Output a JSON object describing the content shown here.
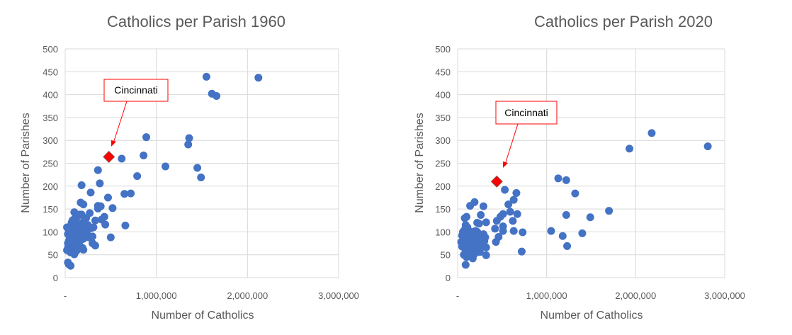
{
  "chart_data": [
    {
      "type": "scatter",
      "title": "Catholics per Parish 1960",
      "xlabel": "Number of Catholics",
      "ylabel": "Number of Parishes",
      "xlim": [
        0,
        3000000
      ],
      "ylim": [
        0,
        500
      ],
      "xticks": [
        0,
        1000000,
        2000000,
        3000000
      ],
      "xtick_labels": [
        "-",
        "1,000,000",
        "2,000,000",
        "3,000,000"
      ],
      "yticks": [
        0,
        50,
        100,
        150,
        200,
        250,
        300,
        350,
        400,
        450,
        500
      ],
      "ytick_labels": [
        "0",
        "50",
        "100",
        "150",
        "200",
        "250",
        "300",
        "350",
        "400",
        "450",
        "500"
      ],
      "grid": true,
      "series_color": "#4472c4",
      "highlight_color": "#ff0000",
      "highlight": {
        "label": "Cincinnati",
        "x": 480000,
        "y": 264
      },
      "points": [
        [
          1550000,
          439
        ],
        [
          2120000,
          437
        ],
        [
          1610000,
          402
        ],
        [
          1660000,
          397
        ],
        [
          890000,
          307
        ],
        [
          1360000,
          305
        ],
        [
          1350000,
          291
        ],
        [
          860000,
          267
        ],
        [
          620000,
          260
        ],
        [
          1100000,
          243
        ],
        [
          1450000,
          240
        ],
        [
          1490000,
          219
        ],
        [
          790000,
          222
        ],
        [
          360000,
          235
        ],
        [
          380000,
          206
        ],
        [
          180000,
          202
        ],
        [
          280000,
          186
        ],
        [
          470000,
          175
        ],
        [
          650000,
          183
        ],
        [
          720000,
          184
        ],
        [
          170000,
          164
        ],
        [
          200000,
          160
        ],
        [
          360000,
          157
        ],
        [
          390000,
          156
        ],
        [
          360000,
          151
        ],
        [
          520000,
          152
        ],
        [
          270000,
          141
        ],
        [
          100000,
          143
        ],
        [
          430000,
          133
        ],
        [
          330000,
          125
        ],
        [
          400000,
          127
        ],
        [
          440000,
          116
        ],
        [
          660000,
          114
        ],
        [
          500000,
          88
        ],
        [
          310000,
          110
        ],
        [
          300000,
          90
        ],
        [
          330000,
          70
        ],
        [
          300000,
          75
        ],
        [
          200000,
          61
        ],
        [
          100000,
          51
        ],
        [
          30000,
          33
        ],
        [
          60000,
          26
        ],
        [
          40000,
          29
        ],
        [
          20000,
          110
        ],
        [
          30000,
          95
        ],
        [
          40000,
          80
        ],
        [
          30000,
          65
        ],
        [
          20000,
          60
        ],
        [
          50000,
          70
        ],
        [
          60000,
          100
        ],
        [
          70000,
          120
        ],
        [
          80000,
          125
        ],
        [
          90000,
          90
        ],
        [
          100000,
          105
        ],
        [
          110000,
          85
        ],
        [
          120000,
          130
        ],
        [
          130000,
          115
        ],
        [
          140000,
          95
        ],
        [
          150000,
          75
        ],
        [
          160000,
          138
        ],
        [
          170000,
          110
        ],
        [
          180000,
          100
        ],
        [
          190000,
          120
        ],
        [
          200000,
          85
        ],
        [
          210000,
          125
        ],
        [
          220000,
          105
        ],
        [
          240000,
          95
        ],
        [
          250000,
          115
        ],
        [
          260000,
          88
        ],
        [
          280000,
          108
        ],
        [
          60000,
          55
        ],
        [
          80000,
          62
        ],
        [
          100000,
          68
        ],
        [
          120000,
          58
        ],
        [
          50000,
          88
        ],
        [
          70000,
          105
        ],
        [
          90000,
          78
        ],
        [
          110000,
          98
        ],
        [
          130000,
          72
        ],
        [
          150000,
          118
        ],
        [
          170000,
          82
        ],
        [
          190000,
          65
        ],
        [
          230000,
          130
        ],
        [
          40000,
          100
        ],
        [
          140000,
          135
        ],
        [
          200000,
          112
        ],
        [
          160000,
          92
        ],
        [
          100000,
          128
        ],
        [
          80000,
          95
        ],
        [
          180000,
          138
        ],
        [
          220000,
          90
        ],
        [
          130000,
          60
        ],
        [
          30000,
          75
        ]
      ]
    },
    {
      "type": "scatter",
      "title": "Catholics per Parish 2020",
      "xlabel": "Number of Catholics",
      "ylabel": "Number of Parishes",
      "xlim": [
        0,
        3000000
      ],
      "ylim": [
        0,
        500
      ],
      "xticks": [
        0,
        1000000,
        2000000,
        3000000
      ],
      "xtick_labels": [
        "-",
        "1,000,000",
        "2,000,000",
        "3,000,000"
      ],
      "yticks": [
        0,
        50,
        100,
        150,
        200,
        250,
        300,
        350,
        400,
        450,
        500
      ],
      "ytick_labels": [
        "0",
        "50",
        "100",
        "150",
        "200",
        "250",
        "300",
        "350",
        "400",
        "450",
        "500"
      ],
      "grid": true,
      "series_color": "#4472c4",
      "highlight_color": "#ff0000",
      "highlight": {
        "label": "Cincinnati",
        "x": 440000,
        "y": 210
      },
      "points": [
        [
          2180000,
          316
        ],
        [
          1930000,
          282
        ],
        [
          2810000,
          287
        ],
        [
          1130000,
          217
        ],
        [
          1220000,
          213
        ],
        [
          1320000,
          184
        ],
        [
          1700000,
          146
        ],
        [
          1490000,
          132
        ],
        [
          1220000,
          137
        ],
        [
          1050000,
          102
        ],
        [
          1180000,
          91
        ],
        [
          1400000,
          97
        ],
        [
          1230000,
          69
        ],
        [
          530000,
          192
        ],
        [
          660000,
          185
        ],
        [
          630000,
          170
        ],
        [
          570000,
          160
        ],
        [
          590000,
          144
        ],
        [
          670000,
          139
        ],
        [
          510000,
          139
        ],
        [
          480000,
          133
        ],
        [
          440000,
          124
        ],
        [
          620000,
          124
        ],
        [
          630000,
          102
        ],
        [
          730000,
          99
        ],
        [
          720000,
          57
        ],
        [
          510000,
          112
        ],
        [
          510000,
          102
        ],
        [
          420000,
          107
        ],
        [
          460000,
          89
        ],
        [
          430000,
          78
        ],
        [
          290000,
          156
        ],
        [
          190000,
          165
        ],
        [
          140000,
          157
        ],
        [
          260000,
          137
        ],
        [
          320000,
          121
        ],
        [
          220000,
          120
        ],
        [
          240000,
          118
        ],
        [
          320000,
          66
        ],
        [
          320000,
          49
        ],
        [
          250000,
          56
        ],
        [
          170000,
          42
        ],
        [
          90000,
          28
        ],
        [
          100000,
          133
        ],
        [
          80000,
          130
        ],
        [
          40000,
          78
        ],
        [
          50000,
          68
        ],
        [
          60000,
          100
        ],
        [
          70000,
          95
        ],
        [
          80000,
          85
        ],
        [
          90000,
          60
        ],
        [
          100000,
          45
        ],
        [
          110000,
          110
        ],
        [
          120000,
          75
        ],
        [
          130000,
          90
        ],
        [
          140000,
          70
        ],
        [
          150000,
          100
        ],
        [
          160000,
          55
        ],
        [
          170000,
          95
        ],
        [
          180000,
          80
        ],
        [
          190000,
          65
        ],
        [
          200000,
          88
        ],
        [
          210000,
          75
        ],
        [
          220000,
          100
        ],
        [
          230000,
          85
        ],
        [
          250000,
          70
        ],
        [
          270000,
          90
        ],
        [
          290000,
          95
        ],
        [
          300000,
          80
        ],
        [
          310000,
          88
        ],
        [
          80000,
          105
        ],
        [
          100000,
          90
        ],
        [
          120000,
          50
        ],
        [
          140000,
          62
        ],
        [
          60000,
          72
        ],
        [
          90000,
          115
        ],
        [
          110000,
          80
        ],
        [
          130000,
          98
        ],
        [
          150000,
          82
        ],
        [
          170000,
          72
        ],
        [
          190000,
          52
        ],
        [
          240000,
          60
        ],
        [
          70000,
          50
        ],
        [
          50000,
          92
        ],
        [
          200000,
          102
        ],
        [
          260000,
          78
        ],
        [
          160000,
          92
        ]
      ]
    }
  ]
}
